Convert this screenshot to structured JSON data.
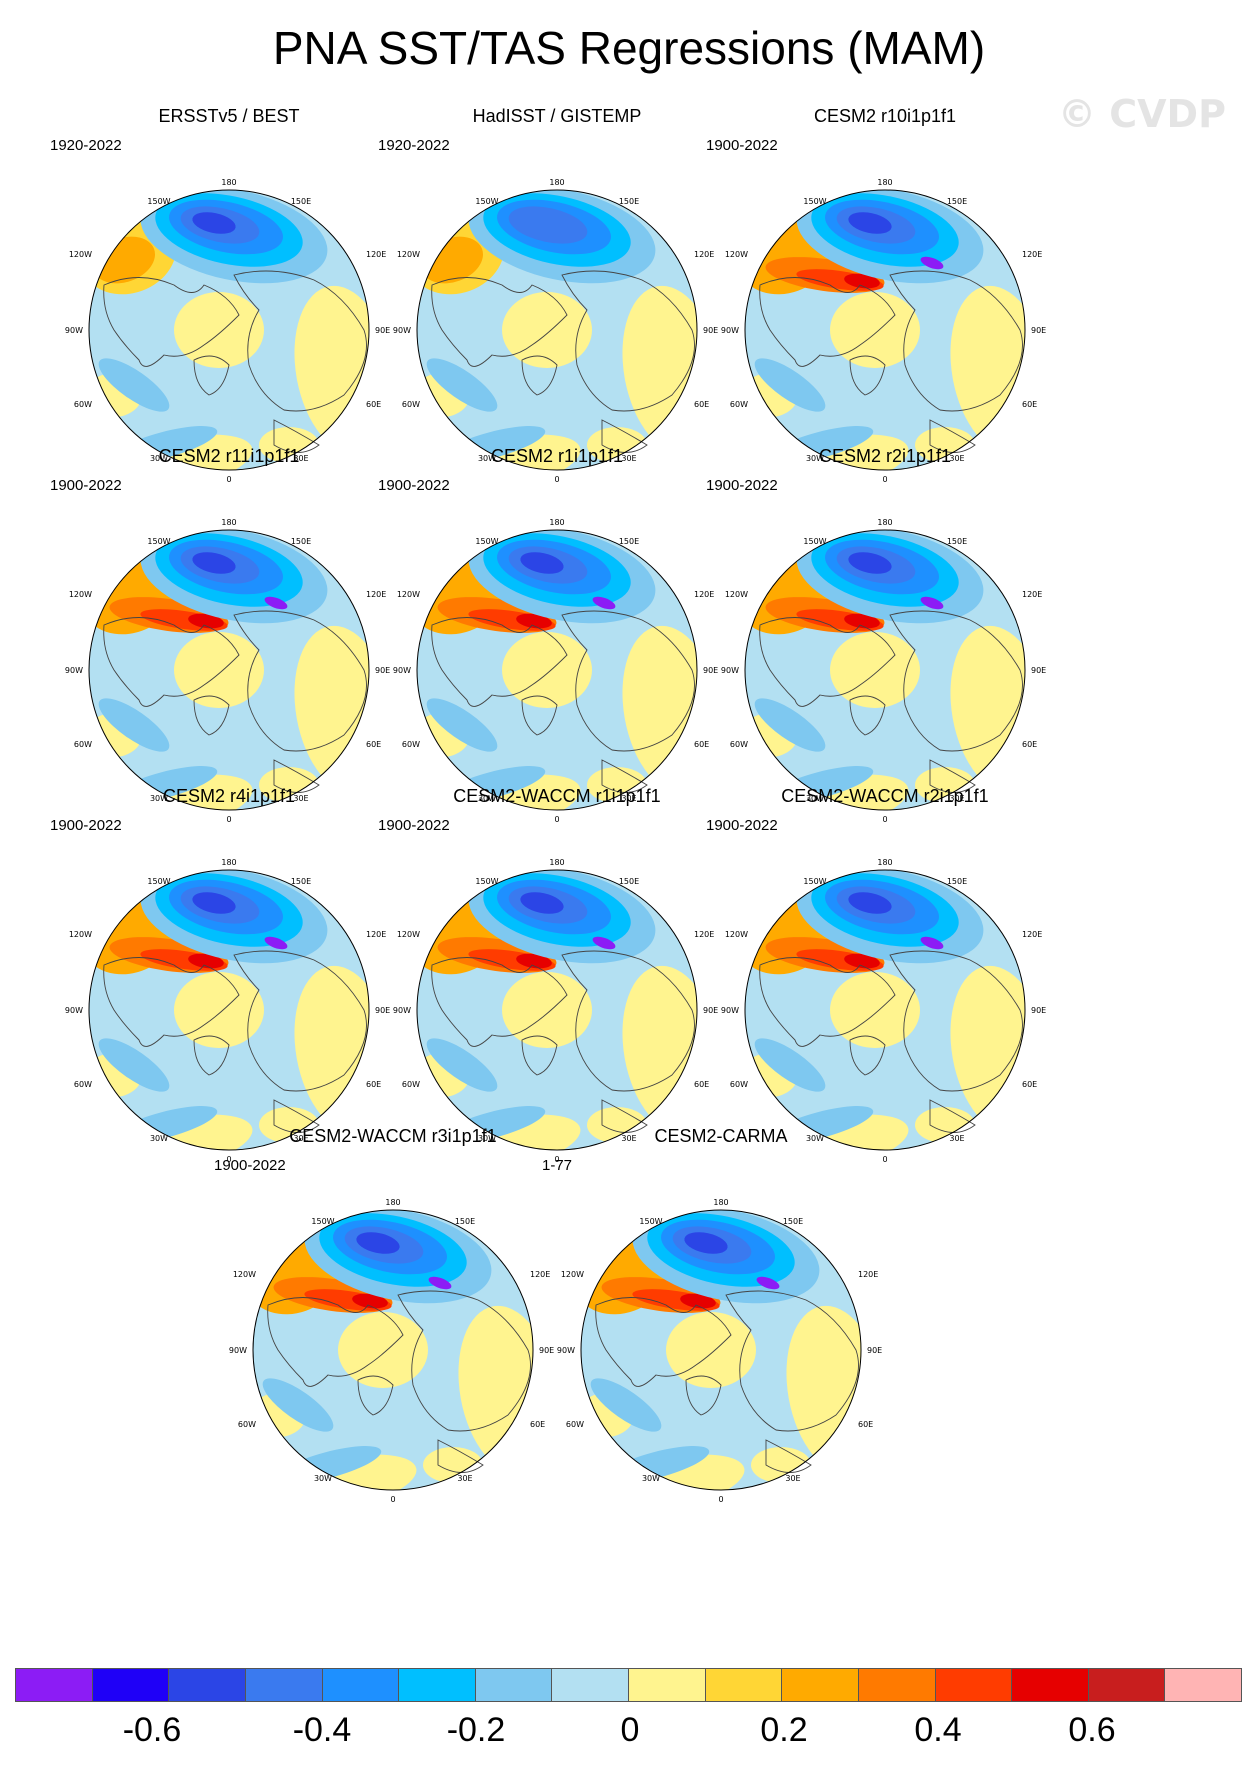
{
  "title": "PNA SST/TAS Regressions (MAM)",
  "watermark": "© CVDP",
  "longitude_labels": {
    "top": "180",
    "bottom": "0",
    "upper_left": "150W",
    "upper_right": "150E",
    "mid_upper_left": "120W",
    "mid_upper_right": "120E",
    "left": "90W",
    "right": "90E",
    "mid_lower_left": "60W",
    "mid_lower_right": "60E",
    "lower_left": "30W",
    "lower_right": "30E"
  },
  "panels": [
    {
      "title": "ERSSTv5 / BEST",
      "period": "1920-2022",
      "style": "obs"
    },
    {
      "title": "HadISST / GISTEMP",
      "period": "1920-2022",
      "style": "obs2"
    },
    {
      "title": "CESM2 r10i1p1f1",
      "period": "1900-2022",
      "style": "model"
    },
    {
      "title": "CESM2 r11i1p1f1",
      "period": "1900-2022",
      "style": "model"
    },
    {
      "title": "CESM2 r1i1p1f1",
      "period": "1900-2022",
      "style": "model"
    },
    {
      "title": "CESM2 r2i1p1f1",
      "period": "1900-2022",
      "style": "model"
    },
    {
      "title": "CESM2 r4i1p1f1",
      "period": "1900-2022",
      "style": "model"
    },
    {
      "title": "CESM2-WACCM r1i1p1f1",
      "period": "1900-2022",
      "style": "model"
    },
    {
      "title": "CESM2-WACCM r2i1p1f1",
      "period": "1900-2022",
      "style": "model"
    },
    {
      "title": "CESM2-WACCM r3i1p1f1",
      "period": "1900-2022",
      "style": "model"
    },
    {
      "title": "CESM2-CARMA",
      "period": "1-77",
      "style": "model"
    }
  ],
  "colorbar": {
    "colors": [
      "#8C1CF5",
      "#1F00F7",
      "#2B45E6",
      "#3A7AEF",
      "#1E90FF",
      "#00BFFF",
      "#7EC8F0",
      "#B3E0F2",
      "#FFF48F",
      "#FFD635",
      "#FFAA00",
      "#FF7A00",
      "#FF3C00",
      "#E60000",
      "#C81E1E",
      "#FFB4B4"
    ],
    "labels": [
      "-0.6",
      "-0.4",
      "-0.2",
      "0",
      "0.2",
      "0.4",
      "0.6"
    ]
  }
}
